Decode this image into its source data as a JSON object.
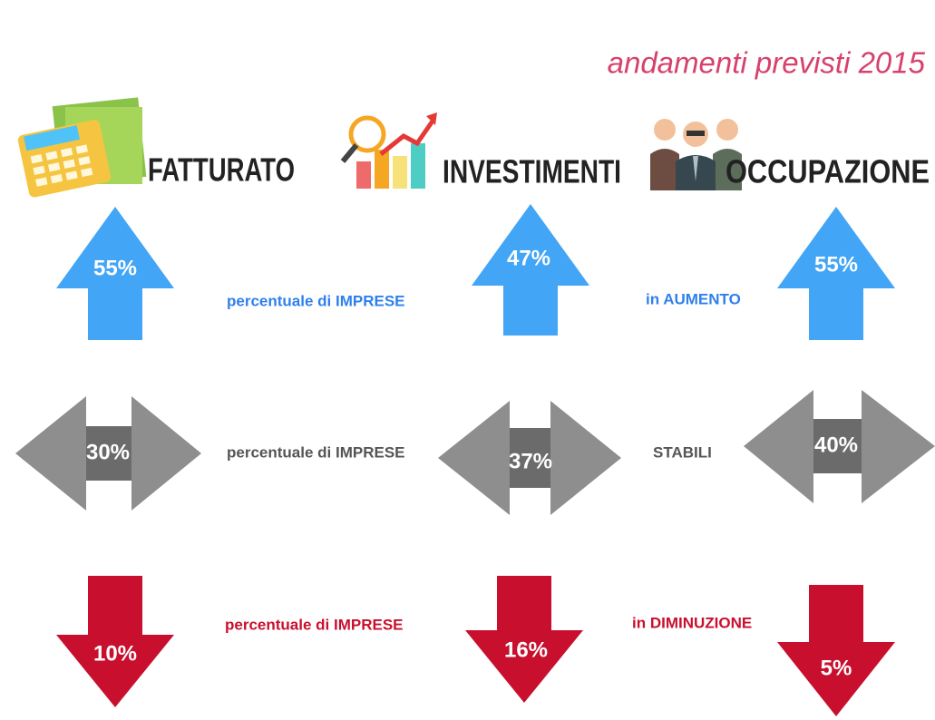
{
  "title": "andamenti previsti 2015",
  "columns": [
    {
      "label": "FATTURATO",
      "increase": "55%",
      "stable": "30%",
      "decrease": "10%"
    },
    {
      "label": "INVESTIMENTI",
      "increase": "47%",
      "stable": "37%",
      "decrease": "16%"
    },
    {
      "label": "OCCUPAZIONE",
      "increase": "55%",
      "stable": "40%",
      "decrease": "5%"
    }
  ],
  "captions": {
    "increase": [
      "percentuale di IMPRESE",
      "in AUMENTO"
    ],
    "stable": [
      "percentuale di IMPRESE",
      "STABILI"
    ],
    "decrease": [
      "percentuale di IMPRESE",
      "in DIMINUZIONE"
    ]
  }
}
